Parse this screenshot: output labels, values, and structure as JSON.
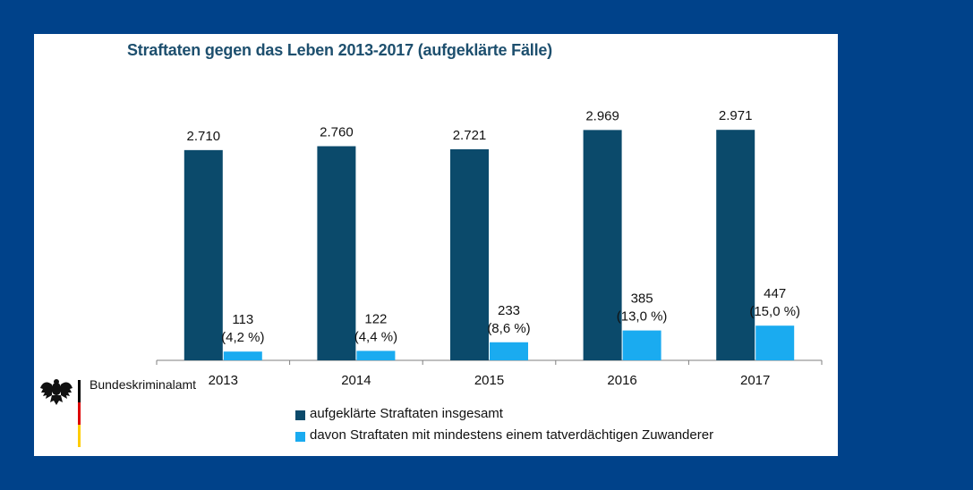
{
  "chart_data": {
    "type": "bar",
    "title": "Straftaten gegen das Leben 2013-2017 (aufgeklärte Fälle)",
    "categories": [
      "2013",
      "2014",
      "2015",
      "2016",
      "2017"
    ],
    "ylim": [
      0,
      3250
    ],
    "grid": false,
    "legend_position": "bottom",
    "series": [
      {
        "name": "aufgeklärte Straftaten insgesamt",
        "color": "#0b4a6b",
        "values": [
          2710,
          2760,
          2721,
          2969,
          2971
        ],
        "labels": [
          "2.710",
          "2.760",
          "2.721",
          "2.969",
          "2.971"
        ]
      },
      {
        "name": "davon Straftaten mit mindestens einem tatverdächtigen Zuwanderer",
        "color": "#1aabf0",
        "values": [
          113,
          122,
          233,
          385,
          447
        ],
        "labels": [
          "113",
          "122",
          "233",
          "385",
          "447"
        ],
        "percent_labels": [
          "(4,2 %)",
          "(4,4 %)",
          "(8,6 %)",
          "(13,0 %)",
          "(15,0 %)"
        ]
      }
    ]
  },
  "branding": {
    "organization": "Bundeskriminalamt",
    "icon": "federal-eagle-icon",
    "flag_colors": [
      "#000000",
      "#dd0000",
      "#ffcc00"
    ]
  }
}
